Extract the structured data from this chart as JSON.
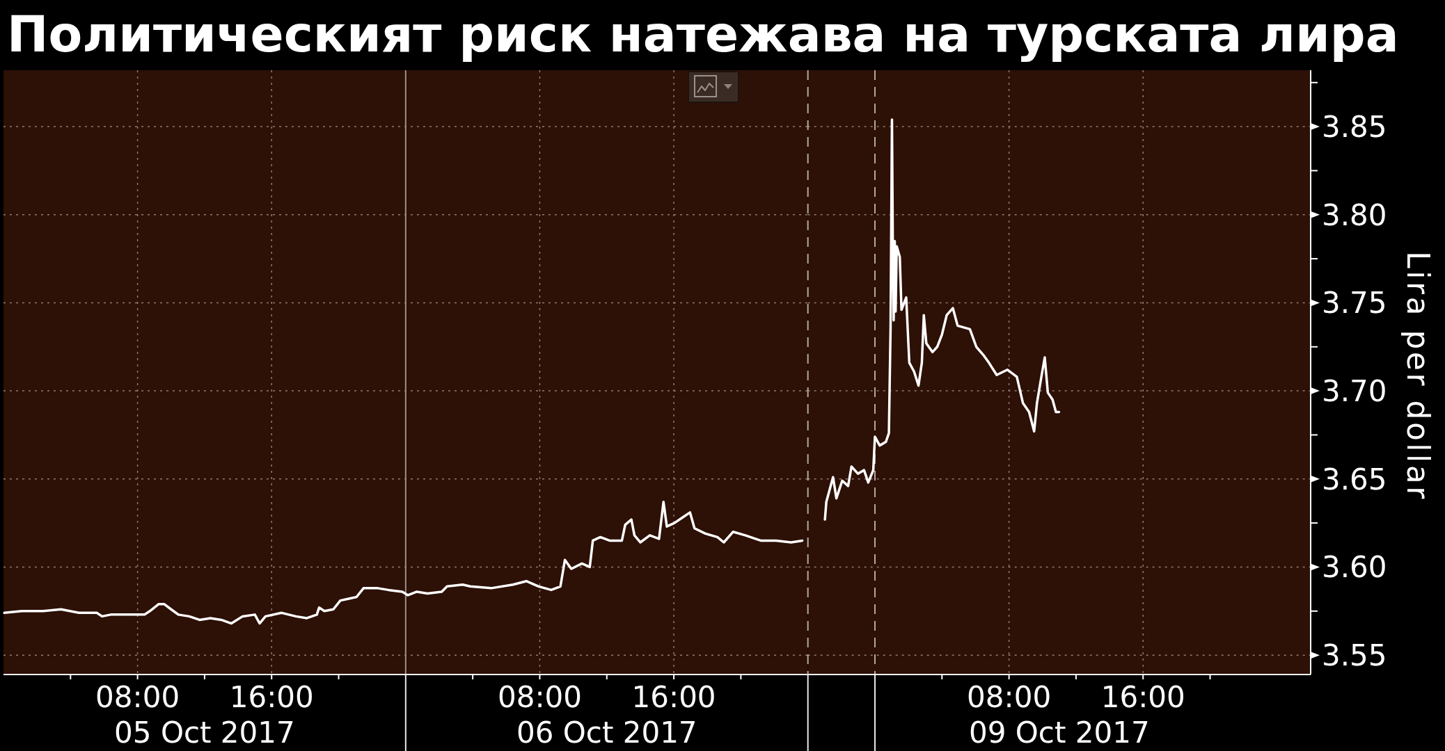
{
  "chart_data": [
    {
      "type": "line",
      "title": "Политическият риск натежава на турската лира",
      "xlim": [
        "2017-10-05T00:00",
        "2017-10-07T00:00"
      ],
      "xticks": [
        {
          "value": "2017-10-05T04:00",
          "label": null
        },
        {
          "value": "2017-10-05T08:00",
          "label": "08:00"
        },
        {
          "value": "2017-10-05T12:00",
          "label": null
        },
        {
          "value": "2017-10-05T16:00",
          "label": "16:00"
        },
        {
          "value": "2017-10-05T20:00",
          "label": null
        },
        {
          "value": "2017-10-06T04:00",
          "label": null
        },
        {
          "value": "2017-10-06T08:00",
          "label": "08:00"
        },
        {
          "value": "2017-10-06T12:00",
          "label": null
        },
        {
          "value": "2017-10-06T16:00",
          "label": "16:00"
        },
        {
          "value": "2017-10-06T20:00",
          "label": null
        }
      ],
      "x2lim": [
        "2017-10-05T00:00",
        "2017-10-07T00:00"
      ],
      "x2ticks": [
        {
          "value": "2017-10-05T12:00",
          "label": "05 Oct 2017"
        },
        {
          "value": "2017-10-06T12:00",
          "label": "06 Oct 2017"
        }
      ],
      "ylim": [
        3.539,
        3.882
      ],
      "yticks": [
        3.55,
        3.6,
        3.65,
        3.7,
        3.75,
        3.8,
        3.85
      ],
      "tick_labels": "x",
      "grid": true,
      "ref_lines": [
        {
          "axis": "x",
          "value": "2017-10-06T00:00",
          "color": "#9a918d",
          "line_style": "solid"
        }
      ],
      "x": [
        "2017-10-05T00:03",
        "2017-10-05T01:06",
        "2017-10-05T02:22",
        "2017-10-05T03:26",
        "2017-10-05T04:30",
        "2017-10-05T05:34",
        "2017-10-05T05:53",
        "2017-10-05T06:24",
        "2017-10-05T07:28",
        "2017-10-05T08:25",
        "2017-10-05T08:44",
        "2017-10-05T09:16",
        "2017-10-05T09:35",
        "2017-10-05T10:00",
        "2017-10-05T10:26",
        "2017-10-05T11:05",
        "2017-10-05T11:42",
        "2017-10-05T12:21",
        "2017-10-05T13:00",
        "2017-10-05T13:36",
        "2017-10-05T14:16",
        "2017-10-05T15:00",
        "2017-10-05T15:17",
        "2017-10-05T15:38",
        "2017-10-05T16:36",
        "2017-10-05T17:27",
        "2017-10-05T18:06",
        "2017-10-05T18:42",
        "2017-10-05T18:50",
        "2017-10-05T19:09",
        "2017-10-05T19:41",
        "2017-10-05T20:06",
        "2017-10-05T20:36",
        "2017-10-05T21:04",
        "2017-10-05T21:29",
        "2017-10-05T22:20",
        "2017-10-05T22:58",
        "2017-10-05T23:48",
        "2017-10-06T00:08",
        "2017-10-06T00:40",
        "2017-10-06T01:18",
        "2017-10-06T02:09",
        "2017-10-06T02:28",
        "2017-10-06T03:24",
        "2017-10-06T03:51",
        "2017-10-06T05:06",
        "2017-10-06T06:24",
        "2017-10-06T07:12",
        "2017-10-06T07:56",
        "2017-10-06T08:41",
        "2017-10-06T09:14",
        "2017-10-06T09:30",
        "2017-10-06T09:53",
        "2017-10-06T10:31",
        "2017-10-06T10:59",
        "2017-10-06T11:10",
        "2017-10-06T11:37",
        "2017-10-06T12:10",
        "2017-10-06T12:54",
        "2017-10-06T13:06",
        "2017-10-06T13:28",
        "2017-10-06T13:39",
        "2017-10-06T14:00",
        "2017-10-06T14:34",
        "2017-10-06T15:07",
        "2017-10-06T15:23",
        "2017-10-06T15:35",
        "2017-10-06T16:02",
        "2017-10-06T16:30",
        "2017-10-06T16:58",
        "2017-10-06T17:14",
        "2017-10-06T17:53",
        "2017-10-06T18:36",
        "2017-10-06T18:59",
        "2017-10-06T19:32",
        "2017-10-06T20:16",
        "2017-10-06T21:11",
        "2017-10-06T22:06",
        "2017-10-06T23:00",
        "2017-10-06T23:40"
      ],
      "series": [
        {
          "color": "#ffffff",
          "values": [
            3.574,
            3.575,
            3.575,
            3.576,
            3.574,
            3.574,
            3.572,
            3.573,
            3.573,
            3.573,
            3.575,
            3.579,
            3.579,
            3.576,
            3.573,
            3.572,
            3.57,
            3.571,
            3.57,
            3.568,
            3.572,
            3.573,
            3.568,
            3.572,
            3.574,
            3.572,
            3.571,
            3.573,
            3.577,
            3.575,
            3.576,
            3.581,
            3.582,
            3.583,
            3.588,
            3.588,
            3.587,
            3.586,
            3.584,
            3.586,
            3.585,
            3.586,
            3.589,
            3.59,
            3.589,
            3.588,
            3.59,
            3.592,
            3.589,
            3.587,
            3.589,
            3.604,
            3.599,
            3.602,
            3.6,
            3.615,
            3.617,
            3.615,
            3.615,
            3.624,
            3.627,
            3.618,
            3.614,
            3.618,
            3.616,
            3.637,
            3.623,
            3.625,
            3.628,
            3.631,
            3.622,
            3.619,
            3.617,
            3.614,
            3.62,
            3.618,
            3.615,
            3.615,
            3.614,
            3.615
          ]
        }
      ]
    },
    {
      "type": "line",
      "xlabel": "09 Oct 2017",
      "ylabel": "Lira per dollar",
      "xlim": [
        "2017-10-08T20:00",
        "2017-10-10T02:00"
      ],
      "xticks": [
        {
          "value": "2017-10-09T04:00",
          "label": null
        },
        {
          "value": "2017-10-09T08:00",
          "label": "08:00"
        },
        {
          "value": "2017-10-09T12:00",
          "label": null
        },
        {
          "value": "2017-10-09T16:00",
          "label": "16:00"
        },
        {
          "value": "2017-10-09T20:00",
          "label": null
        }
      ],
      "ylim": [
        3.539,
        3.882
      ],
      "yticks": [
        3.55,
        {
          "value": 3.575,
          "label": null
        },
        {
          "value": 3.6,
          "label": "3.60"
        },
        {
          "value": 3.625,
          "label": null
        },
        3.65,
        {
          "value": 3.675,
          "label": null
        },
        {
          "value": 3.7,
          "label": "3.70"
        },
        {
          "value": 3.725,
          "label": null
        },
        3.75,
        {
          "value": 3.775,
          "label": null
        },
        {
          "value": 3.8,
          "label": "3.80"
        },
        {
          "value": 3.825,
          "label": null
        },
        3.85,
        {
          "value": 3.875,
          "label": null
        }
      ],
      "grid": true,
      "ref_lines": [
        {
          "axis": "x",
          "value": "2017-10-08T20:00",
          "color": "#b3a8a2",
          "line_style": "dashed"
        },
        {
          "axis": "x",
          "value": "2017-10-09T00:00",
          "color": "#b3a8a2",
          "line_style": "dashed"
        }
      ],
      "x": [
        "2017-10-08T21:01",
        "2017-10-08T21:06",
        "2017-10-08T21:30",
        "2017-10-08T21:42",
        "2017-10-08T22:03",
        "2017-10-08T22:24",
        "2017-10-08T22:36",
        "2017-10-08T22:59",
        "2017-10-08T23:21",
        "2017-10-08T23:36",
        "2017-10-08T23:54",
        "2017-10-09T00:00",
        "2017-10-09T00:17",
        "2017-10-09T00:39",
        "2017-10-09T00:50",
        "2017-10-09T00:56",
        "2017-10-09T01:01",
        "2017-10-09T01:04",
        "2017-10-09T01:07",
        "2017-10-09T01:11",
        "2017-10-09T01:14",
        "2017-10-09T01:18",
        "2017-10-09T01:29",
        "2017-10-09T01:35",
        "2017-10-09T01:52",
        "2017-10-09T02:03",
        "2017-10-09T02:20",
        "2017-10-09T02:36",
        "2017-10-09T02:48",
        "2017-10-09T02:55",
        "2017-10-09T03:04",
        "2017-10-09T03:26",
        "2017-10-09T03:43",
        "2017-10-09T04:00",
        "2017-10-09T04:17",
        "2017-10-09T04:39",
        "2017-10-09T04:56",
        "2017-10-09T05:40",
        "2017-10-09T06:03",
        "2017-10-09T06:30",
        "2017-10-09T06:48",
        "2017-10-09T07:16",
        "2017-10-09T07:54",
        "2017-10-09T08:28",
        "2017-10-09T08:50",
        "2017-10-09T09:12",
        "2017-10-09T09:30",
        "2017-10-09T09:40",
        "2017-10-09T09:57",
        "2017-10-09T10:08",
        "2017-10-09T10:19",
        "2017-10-09T10:36",
        "2017-10-09T10:48",
        "2017-10-09T10:59"
      ],
      "series": [
        {
          "color": "#ffffff",
          "values": [
            3.627,
            3.637,
            3.651,
            3.639,
            3.649,
            3.646,
            3.657,
            3.653,
            3.655,
            3.648,
            3.655,
            3.674,
            3.669,
            3.671,
            3.676,
            3.736,
            3.854,
            3.783,
            3.74,
            3.785,
            3.745,
            3.782,
            3.776,
            3.746,
            3.753,
            3.716,
            3.711,
            3.703,
            3.716,
            3.743,
            3.727,
            3.722,
            3.725,
            3.732,
            3.743,
            3.747,
            3.737,
            3.735,
            3.725,
            3.72,
            3.716,
            3.709,
            3.712,
            3.708,
            3.693,
            3.688,
            3.677,
            3.693,
            3.709,
            3.719,
            3.699,
            3.695,
            3.688,
            3.688
          ]
        }
      ]
    }
  ]
}
